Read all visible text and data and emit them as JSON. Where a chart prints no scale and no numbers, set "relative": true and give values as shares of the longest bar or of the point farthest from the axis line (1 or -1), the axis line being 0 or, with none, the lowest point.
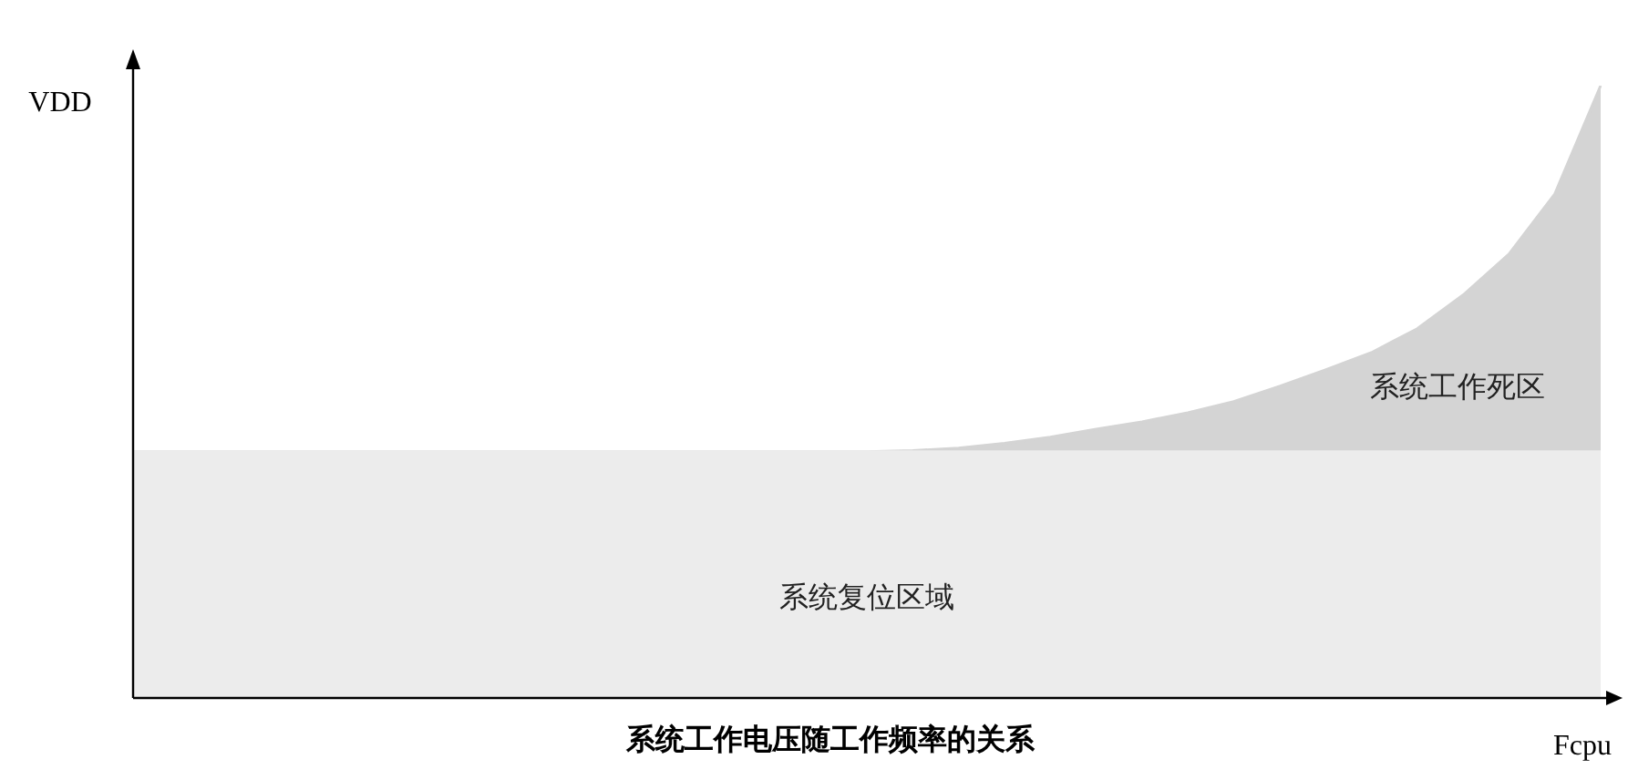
{
  "chart_data": {
    "type": "area",
    "relative": true,
    "title": "系统工作电压随工作频率的关系",
    "xlabel": "Fcpu",
    "ylabel": "VDD",
    "categories": [
      null,
      null,
      null,
      null,
      null,
      null,
      null,
      null,
      null,
      null,
      null,
      null,
      null,
      null,
      null,
      null,
      null,
      null,
      null,
      null,
      null,
      null,
      null,
      null,
      null,
      null,
      null,
      null,
      null,
      null,
      null,
      null,
      null
    ],
    "series": [
      {
        "name": "系统复位区域",
        "color": "#ececec",
        "values": [
          0.402,
          0.402,
          0.402,
          0.402,
          0.402,
          0.402,
          0.402,
          0.402,
          0.402,
          0.402,
          0.402,
          0.402,
          0.402,
          0.402,
          0.402,
          0.402,
          0.402,
          0.402,
          0.402,
          0.402,
          0.402,
          0.402,
          0.402,
          0.402,
          0.402,
          0.402,
          0.402,
          0.402,
          0.402,
          0.402,
          0.402,
          0.402,
          0.402
        ]
      },
      {
        "name": "系统工作死区",
        "color": "#d4d4d4",
        "values": [
          0.402,
          0.402,
          0.402,
          0.402,
          0.402,
          0.402,
          0.402,
          0.402,
          0.402,
          0.402,
          0.402,
          0.402,
          0.402,
          0.402,
          0.402,
          0.402,
          0.402,
          0.404,
          0.408,
          0.416,
          0.426,
          0.439,
          0.451,
          0.466,
          0.484,
          0.509,
          0.536,
          0.564,
          0.603,
          0.658,
          0.725,
          0.823,
          1
        ]
      }
    ]
  }
}
